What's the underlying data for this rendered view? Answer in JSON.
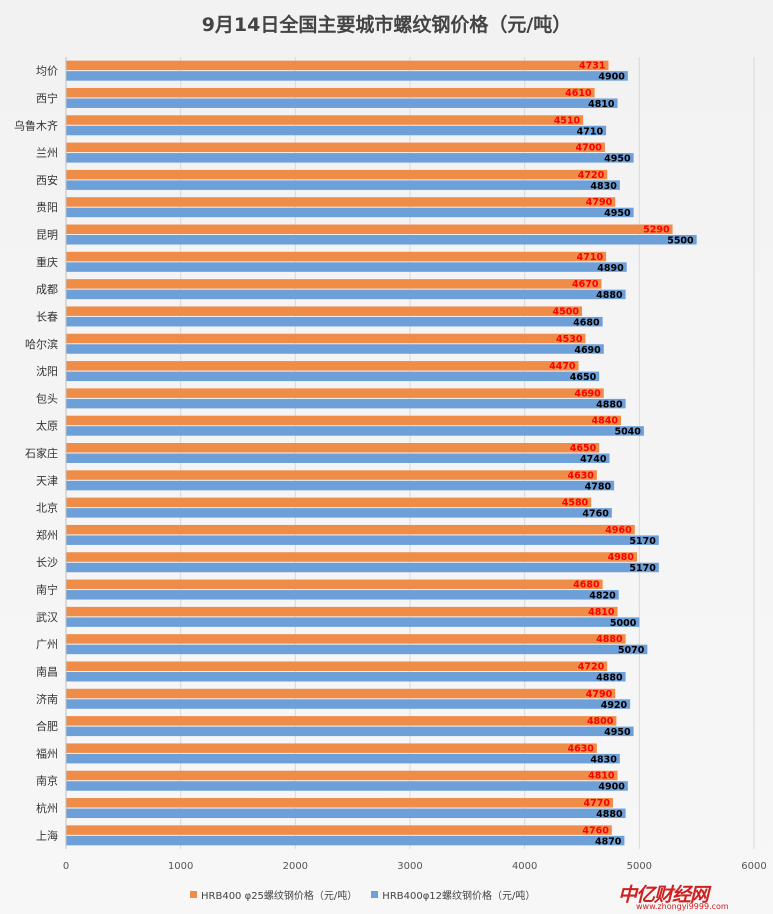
{
  "colors": {
    "series1": "#ef8c48",
    "series2": "#6d9fd9",
    "label1": "#ff0000",
    "label2": "#000000",
    "grid": "#d9d9d9",
    "watermark": "#d02020"
  },
  "chart_data": {
    "type": "bar",
    "orientation": "horizontal",
    "title": "9月14日全国主要城市螺纹钢价格（元/吨）",
    "categories": [
      "均价",
      "西宁",
      "乌鲁木齐",
      "兰州",
      "西安",
      "贵阳",
      "昆明",
      "重庆",
      "成都",
      "长春",
      "哈尔滨",
      "沈阳",
      "包头",
      "太原",
      "石家庄",
      "天津",
      "北京",
      "郑州",
      "长沙",
      "南宁",
      "武汉",
      "广州",
      "南昌",
      "济南",
      "合肥",
      "福州",
      "南京",
      "杭州",
      "上海"
    ],
    "series": [
      {
        "name": "HRB400 φ25螺纹钢价格（元/吨）",
        "values": [
          4731,
          4610,
          4510,
          4700,
          4720,
          4790,
          5290,
          4710,
          4670,
          4500,
          4530,
          4470,
          4690,
          4840,
          4650,
          4630,
          4580,
          4960,
          4980,
          4680,
          4810,
          4880,
          4720,
          4790,
          4800,
          4630,
          4810,
          4770,
          4760
        ]
      },
      {
        "name": "HRB400φ12螺纹钢价格（元/吨）",
        "values": [
          4900,
          4810,
          4710,
          4950,
          4830,
          4950,
          5500,
          4890,
          4880,
          4680,
          4690,
          4650,
          4880,
          5040,
          4740,
          4780,
          4760,
          5170,
          5170,
          4820,
          5000,
          5070,
          4880,
          4920,
          4950,
          4830,
          4900,
          4880,
          4870
        ]
      }
    ],
    "xlim": [
      0,
      6000
    ],
    "xticks": [
      "0",
      "1000",
      "2000",
      "3000",
      "4000",
      "5000",
      "6000"
    ],
    "grid": true,
    "legend_position": "bottom"
  },
  "watermark": {
    "logo": "中亿财经网",
    "url": "www.zhongyi9999.com"
  }
}
